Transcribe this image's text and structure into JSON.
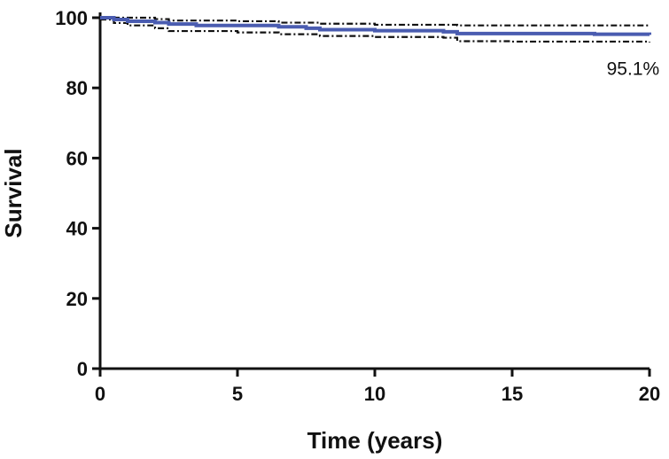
{
  "chart_data": {
    "type": "line",
    "xlabel": "Time (years)",
    "ylabel": "Survival",
    "xlim": [
      0,
      20
    ],
    "ylim": [
      0,
      100
    ],
    "x_ticks": [
      "0",
      "5",
      "10",
      "15",
      "20"
    ],
    "y_ticks": [
      "0",
      "20",
      "40",
      "60",
      "80",
      "100"
    ],
    "grid": false,
    "colors": {
      "survival": "#4a5cb0",
      "ci": "#111111"
    },
    "series": [
      {
        "role": "survival",
        "style": "solid",
        "x": [
          0,
          0.5,
          1.0,
          2.0,
          2.5,
          3.5,
          5.0,
          6.5,
          7.5,
          8.0,
          10.0,
          12.5,
          13.0,
          15.0,
          18.0,
          20.0
        ],
        "y": [
          100,
          99.5,
          99.0,
          98.6,
          98.2,
          97.8,
          97.8,
          97.4,
          97.0,
          96.6,
          96.3,
          96.0,
          95.5,
          95.5,
          95.3,
          95.1
        ]
      },
      {
        "role": "upper-ci",
        "style": "dashed",
        "x": [
          0,
          1.0,
          2.0,
          2.5,
          5.0,
          6.5,
          8.0,
          10.0,
          13.0,
          15.0,
          20.0
        ],
        "y": [
          100,
          100,
          99.6,
          99.2,
          99.0,
          98.6,
          98.3,
          98.0,
          97.8,
          97.8,
          97.6
        ]
      },
      {
        "role": "lower-ci",
        "style": "dashed",
        "x": [
          0,
          0.5,
          1.0,
          2.0,
          2.5,
          5.0,
          6.5,
          8.0,
          10.0,
          12.5,
          13.0,
          15.0,
          20.0
        ],
        "y": [
          99.5,
          98.5,
          97.8,
          97.0,
          96.2,
          95.8,
          95.3,
          94.8,
          94.5,
          94.3,
          93.3,
          93.2,
          93.0
        ]
      }
    ],
    "annotations": [
      {
        "text": "95.1%",
        "x": 19.4,
        "y": 85.5
      }
    ]
  }
}
